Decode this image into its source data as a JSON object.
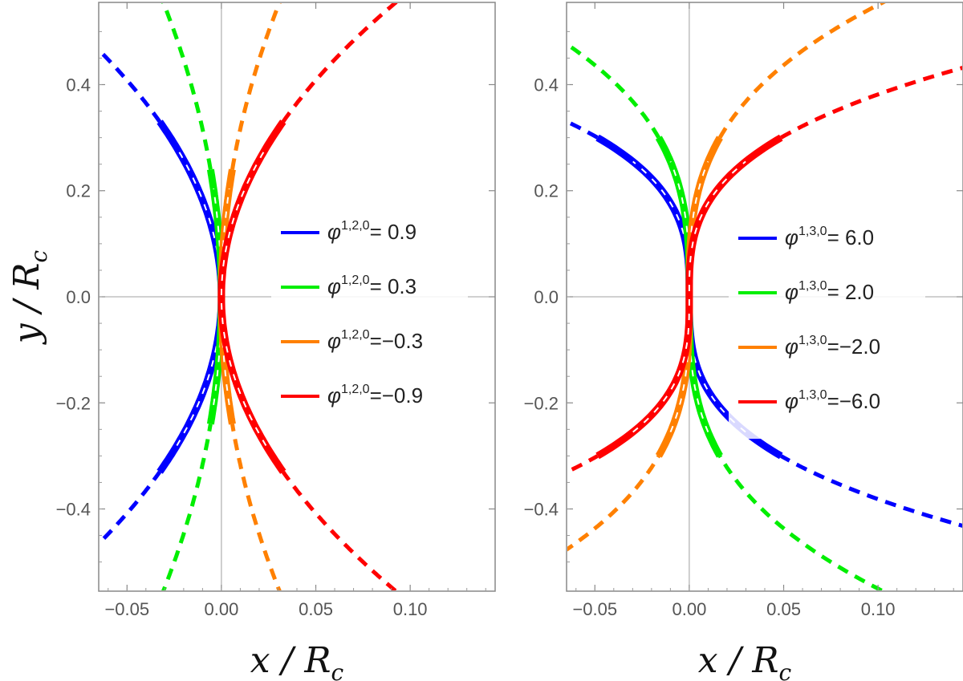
{
  "figure": {
    "xlabel": "x / R",
    "xlabel_sub": "c",
    "ylabel": "y / R",
    "ylabel_sub": "c"
  },
  "chart_data": [
    {
      "type": "line",
      "xlim": [
        -0.065,
        0.145
      ],
      "ylim": [
        -0.555,
        0.555
      ],
      "xticks": [
        -0.05,
        0.0,
        0.05,
        0.1
      ],
      "xtick_labels": [
        "−0.05",
        "0.00",
        "0.05",
        "0.10"
      ],
      "yticks": [
        -0.4,
        -0.2,
        0.0,
        0.2,
        0.4
      ],
      "ytick_labels": [
        "−0.4",
        "−0.2",
        "0.0",
        "0.2",
        "0.4"
      ],
      "grid": false,
      "legend_position": "right",
      "series": [
        {
          "name": "φ1,2,0= 0.9",
          "sym": "φ",
          "sup": "1,2,0",
          "value": "= 0.9",
          "color": "#0000ff",
          "a": -0.3,
          "solid_ymax": 0.33
        },
        {
          "name": "φ1,2,0= 0.3",
          "sym": "φ",
          "sup": "1,2,0",
          "value": "= 0.3",
          "color": "#00ee00",
          "a": -0.1,
          "solid_ymax": 0.24
        },
        {
          "name": "φ1,2,0=−0.3",
          "sym": "φ",
          "sup": "1,2,0",
          "value": "=−0.3",
          "color": "#ff8000",
          "a": 0.1,
          "solid_ymax": 0.24
        },
        {
          "name": "φ1,2,0=−0.9",
          "sym": "φ",
          "sup": "1,2,0",
          "value": "=−0.9",
          "color": "#ff0000",
          "a": 0.3,
          "solid_ymax": 0.33
        }
      ]
    },
    {
      "type": "line",
      "xlim": [
        -0.065,
        0.145
      ],
      "ylim": [
        -0.555,
        0.555
      ],
      "xticks": [
        -0.05,
        0.0,
        0.05,
        0.1
      ],
      "xtick_labels": [
        "−0.05",
        "0.00",
        "0.05",
        "0.10"
      ],
      "yticks": [
        -0.4,
        -0.2,
        0.0,
        0.2,
        0.4
      ],
      "ytick_labels": [
        "−0.4",
        "−0.2",
        "0.0",
        "0.2",
        "0.4"
      ],
      "grid": false,
      "legend_position": "right",
      "series": [
        {
          "name": "φ1,3,0= 6.0",
          "sym": "φ",
          "sup": "1,3,0",
          "value": "= 6.0",
          "color": "#0000ff",
          "b": -1.8,
          "solid_ymax": 0.3
        },
        {
          "name": "φ1,3,0= 2.0",
          "sym": "φ",
          "sup": "1,3,0",
          "value": "= 2.0",
          "color": "#00ee00",
          "b": -0.6,
          "solid_ymax": 0.3
        },
        {
          "name": "φ1,3,0=−2.0",
          "sym": "φ",
          "sup": "1,3,0",
          "value": "=−2.0",
          "color": "#ff8000",
          "b": 0.6,
          "solid_ymax": 0.3
        },
        {
          "name": "φ1,3,0=−6.0",
          "sym": "φ",
          "sup": "1,3,0",
          "value": "=−6.0",
          "color": "#ff0000",
          "b": 1.8,
          "solid_ymax": 0.3
        }
      ]
    }
  ]
}
